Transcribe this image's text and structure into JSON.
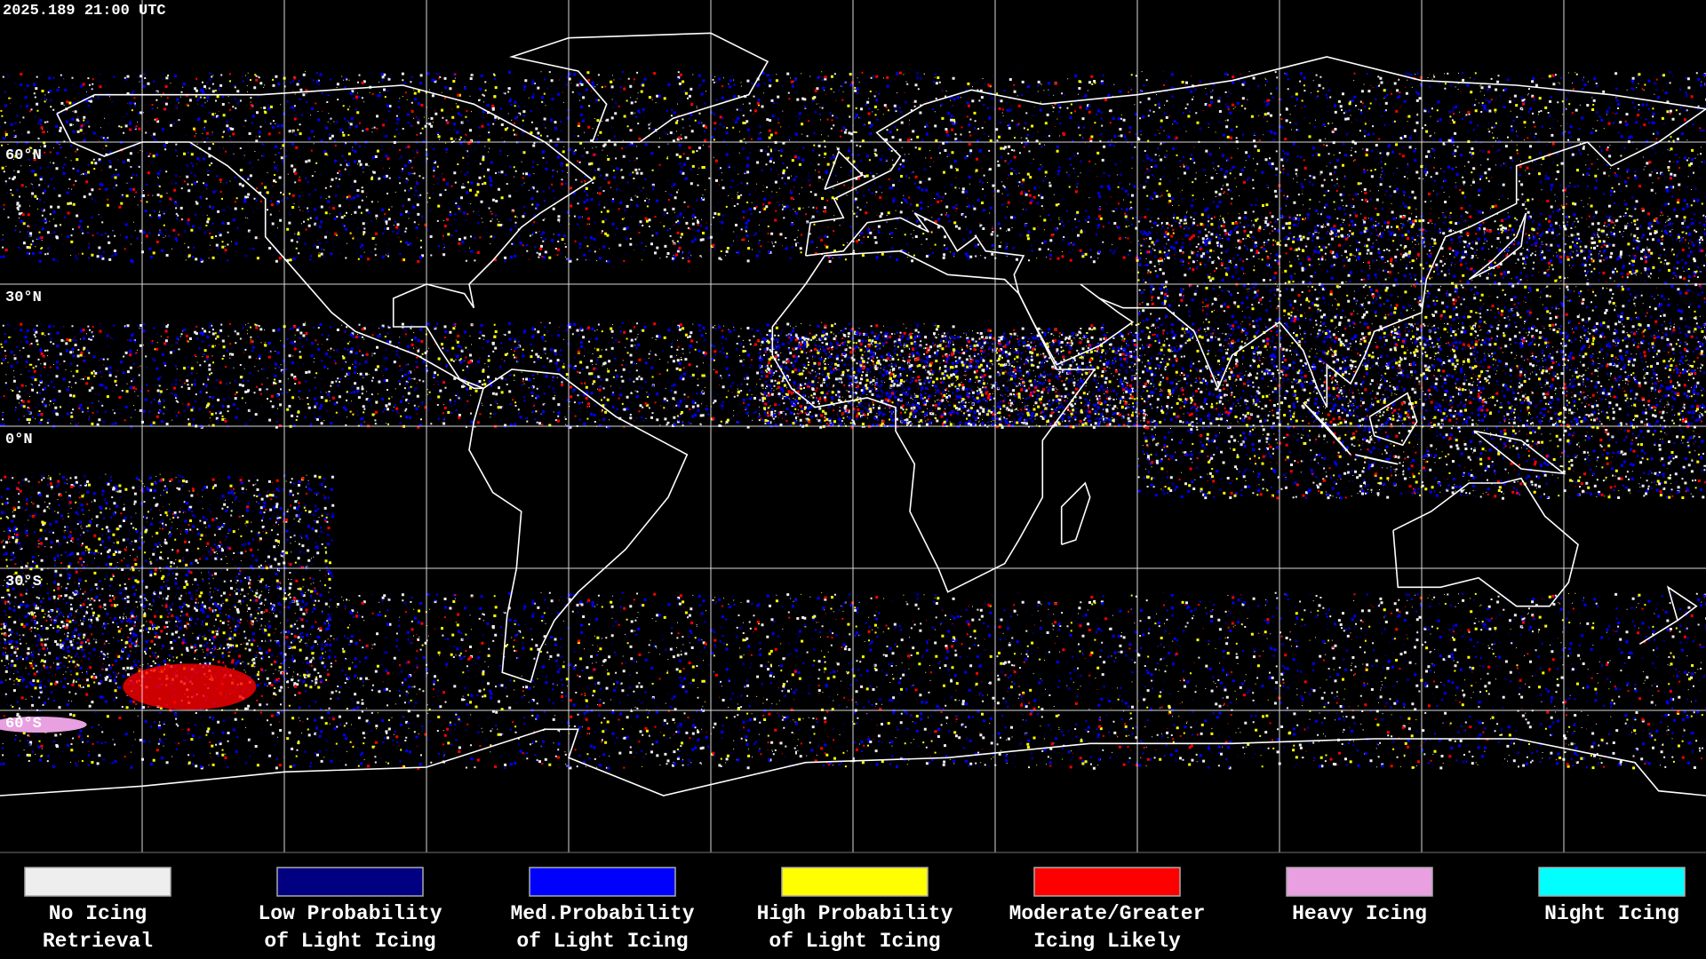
{
  "header": {
    "timestamp": "2025.189 21:00 UTC"
  },
  "map": {
    "lat_labels": [
      "60°N",
      "30°N",
      "0°N",
      "30°S",
      "60°S"
    ]
  },
  "legend": {
    "items": [
      {
        "color": "#eeeeee",
        "label": [
          "No Icing",
          "Retrieval"
        ]
      },
      {
        "color": "#000080",
        "label": [
          "Low Probability",
          "of Light Icing"
        ]
      },
      {
        "color": "#0000ff",
        "label": [
          "Med.Probability",
          "of Light Icing"
        ]
      },
      {
        "color": "#ffff00",
        "label": [
          "High Probability",
          "of Light Icing"
        ]
      },
      {
        "color": "#ff0000",
        "label": [
          "Moderate/Greater",
          "Icing Likely"
        ]
      },
      {
        "color": "#e8a0e0",
        "label": [
          "Heavy Icing"
        ]
      },
      {
        "color": "#00ffff",
        "label": [
          "Night Icing"
        ]
      }
    ]
  }
}
